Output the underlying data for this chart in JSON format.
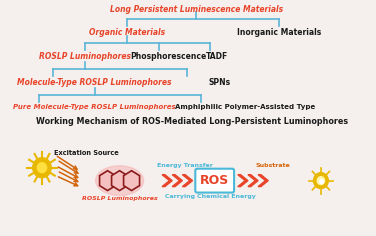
{
  "bg_color": "#f5f0ee",
  "title_top": "Long Persistent Luminescence Materials",
  "line_color": "#5ab4d6",
  "red_color": "#e8442a",
  "black_color": "#1a1a1a",
  "orange_color": "#d4640a",
  "cyan_color": "#4ab8d8",
  "gold_color": "#e8b800",
  "row1_left": "Organic Materials",
  "row1_right": "Inorganic Materials",
  "row2_left": "ROSLP Luminophores",
  "row2_mid": "Phosphorescence",
  "row2_right": "TADF",
  "row3_left": "Molecule-Type ROSLP Luminophores",
  "row3_right": "SPNs",
  "row4_left": "Pure Molecule-Type ROSLP Luminophores",
  "row4_right": "Amphiphilic Polymer-Assisted Type",
  "working_title": "Working Mechanism of ROS-Mediated Long-Persistent Luminophores",
  "excitation_label": "Excitation Source",
  "roslp_label": "ROSLP Luminophores",
  "energy_transfer_label": "Energy Transfer",
  "ros_label": "ROS",
  "carrying_label": "Carrying Chemical Energy",
  "substrate_label": "Substrate"
}
